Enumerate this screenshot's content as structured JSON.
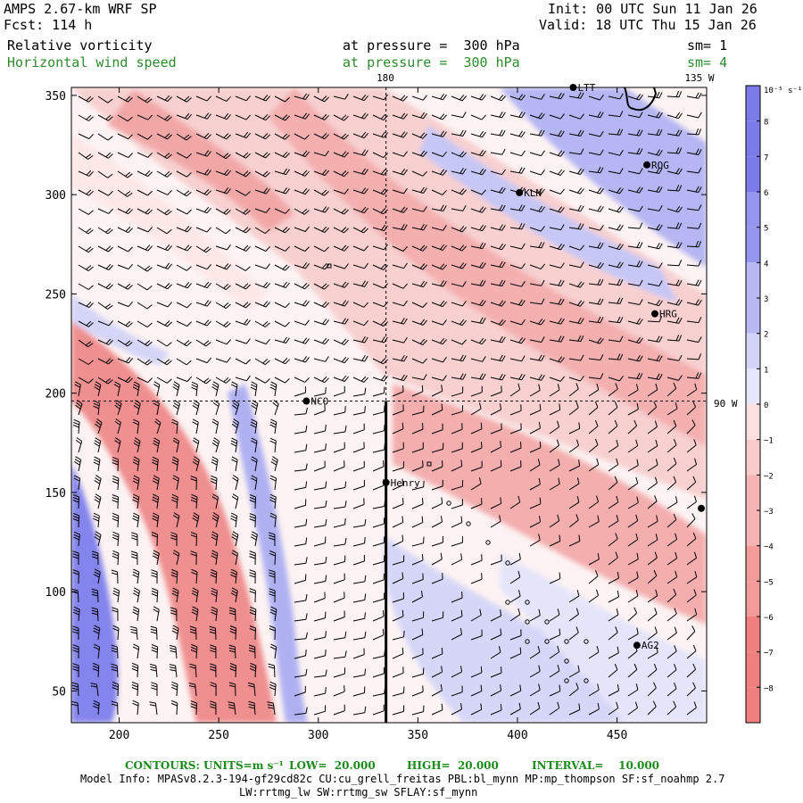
{
  "header": {
    "model": "AMPS 2.67-km WRF SP",
    "fcst": "Fcst: 114 h",
    "init": "Init: 00 UTC Sun 11 Jan 26",
    "valid": "Valid: 18 UTC Thu 15 Jan 26",
    "field1": "Relative vorticity",
    "field1_level": "at pressure =  300 hPa",
    "field1_sm": "sm= 1",
    "field2": "Horizontal wind speed",
    "field2_level": "at pressure =  300 hPa",
    "field2_sm": "sm= 4"
  },
  "colors": {
    "pos_strong": "#7b7bea",
    "pos_mid": "#b8b8f3",
    "pos_light": "#e6e6fb",
    "neg_light": "#fbe0e0",
    "neg_mid": "#f6b4b4",
    "neg_strong": "#f17f7f",
    "label_green": "#2e8b2e"
  },
  "chart_data": {
    "type": "heatmap",
    "title": "Relative vorticity / Horizontal wind speed at 300 hPa",
    "x_ticks": [
      200,
      250,
      300,
      350,
      400,
      450
    ],
    "y_ticks": [
      50,
      100,
      150,
      200,
      250,
      300,
      350
    ],
    "xlim": [
      176,
      495
    ],
    "ylim": [
      34,
      354
    ],
    "meridian_labels": {
      "top_180": "180",
      "top_135w": "135 W",
      "right_90w": "90 W"
    },
    "colorbar": {
      "unit_label": "10⁻⁵ s⁻¹",
      "levels": [
        8,
        7,
        6,
        5,
        4,
        3,
        2,
        1,
        0,
        -1,
        -2,
        -3,
        -4,
        -5,
        -6,
        -7,
        -8
      ],
      "labels": [
        "8",
        "7",
        "6",
        "5",
        "4",
        "3",
        "2",
        "1",
        "0",
        "−1",
        "−2",
        "−3",
        "−4",
        "−5",
        "−6",
        "−7",
        "−8"
      ],
      "range": [
        -9,
        9
      ]
    },
    "stations": [
      {
        "name": "LTT",
        "x": 428,
        "y": 354
      },
      {
        "name": "ROG",
        "x": 465,
        "y": 315
      },
      {
        "name": "KLN",
        "x": 401,
        "y": 301
      },
      {
        "name": "HRG",
        "x": 469,
        "y": 240
      },
      {
        "name": "NCO",
        "x": 294,
        "y": 196
      },
      {
        "name": "Henry",
        "x": 334,
        "y": 155
      },
      {
        "name": "AG2",
        "x": 460,
        "y": 73
      },
      {
        "name": "",
        "x": 495,
        "y": 142
      }
    ],
    "thick_line": {
      "x": 334,
      "y_from": 34,
      "y_to": 196
    },
    "dashed_meridian_x": 334,
    "dashed_parallel_y": 196
  },
  "footer": {
    "contours_label": "CONTOURS:",
    "units_label": "UNITS=m s⁻¹",
    "low": "LOW=  20.000",
    "high": "HIGH=  20.000",
    "interval": "INTERVAL=    10.000",
    "model_info": "Model Info: MPASv8.2.3-194-gf29cd82c CU:cu_grell_freitas PBL:bl_mynn MP:mp_thompson SF:sf_noahmp 2.7",
    "model_info2": "LW:rrtmg_lw SW:rrtmg_sw SFLAY:sf_mynn"
  }
}
